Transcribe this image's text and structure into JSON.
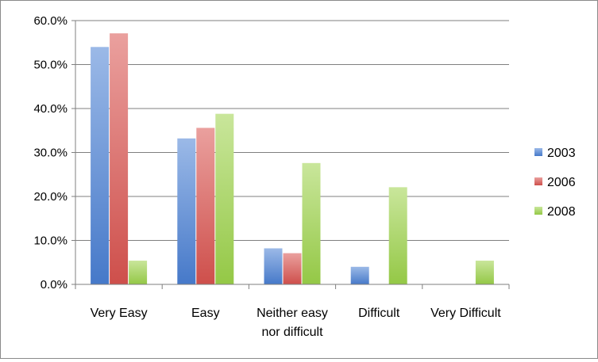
{
  "chart_data": {
    "type": "bar",
    "categories": [
      "Very Easy",
      "Easy",
      "Neither easy nor difficult",
      "Difficult",
      "Very Difficult"
    ],
    "category_label_lines": [
      [
        "Very Easy"
      ],
      [
        "Easy"
      ],
      [
        "Neither easy",
        "nor difficult"
      ],
      [
        "Difficult"
      ],
      [
        "Very Difficult"
      ]
    ],
    "series": [
      {
        "name": "2003",
        "values": [
          54.0,
          33.2,
          8.2,
          4.0,
          0.0
        ],
        "color": "#4a7fd4"
      },
      {
        "name": "2006",
        "values": [
          57.1,
          35.6,
          7.1,
          0.0,
          0.0
        ],
        "color": "#d9534f"
      },
      {
        "name": "2008",
        "values": [
          5.4,
          38.8,
          27.6,
          22.1,
          5.4
        ],
        "color": "#9cd24a"
      }
    ],
    "ylim": [
      0,
      60
    ],
    "yticks": [
      0,
      10,
      20,
      30,
      40,
      50,
      60
    ],
    "ytick_labels": [
      "0.0%",
      "10.0%",
      "20.0%",
      "30.0%",
      "40.0%",
      "50.0%",
      "60.0%"
    ],
    "grid": true,
    "legend": "right",
    "title": "",
    "xlabel": "",
    "ylabel": ""
  }
}
